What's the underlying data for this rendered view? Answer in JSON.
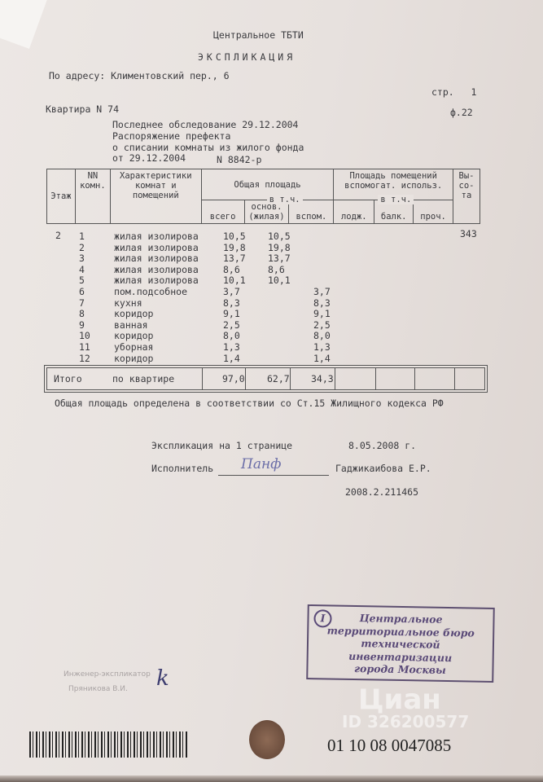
{
  "header": {
    "org": "Центральное ТБТИ",
    "title": "ЭКСПЛИКАЦИЯ",
    "address": "По адресу: Климентовский пер., 6",
    "page": "стр.   1",
    "form": "ф.22"
  },
  "apartment": {
    "number": "Квартира N 74",
    "survey": "Последнее обследование 29.12.2004",
    "order_line1": "Распоряжение префекта",
    "order_line2": "о списании комнаты из жилого фонда",
    "order_date": "от 29.12.2004",
    "order_number": "N 8842-р"
  },
  "table": {
    "headers": {
      "floor": "Этаж",
      "num": "NN комн.",
      "desc": "Характеристики комнат и помещений",
      "total_area": "Общая площадь",
      "incl": "в т.ч.",
      "all": "всего",
      "main": "основ. (жилая)",
      "aux": "вспом.",
      "aux_area": "Площадь помещений вспомогат. использ.",
      "incl2": "в т.ч.",
      "loggia": "лодж.",
      "balcony": "балк.",
      "other": "проч.",
      "height": "Вы- со- та"
    },
    "floor": "2",
    "height": "343",
    "rows": [
      {
        "n": "1",
        "desc": "жилая изолирова",
        "all": "10,5",
        "main": "10,5",
        "aux": ""
      },
      {
        "n": "2",
        "desc": "жилая изолирова",
        "all": "19,8",
        "main": "19,8",
        "aux": ""
      },
      {
        "n": "3",
        "desc": "жилая изолирова",
        "all": "13,7",
        "main": "13,7",
        "aux": ""
      },
      {
        "n": "4",
        "desc": "жилая изолирова",
        "all": "8,6",
        "main": "8,6",
        "aux": ""
      },
      {
        "n": "5",
        "desc": "жилая изолирова",
        "all": "10,1",
        "main": "10,1",
        "aux": ""
      },
      {
        "n": "6",
        "desc": "пом.подсобное",
        "all": "3,7",
        "main": "",
        "aux": "3,7"
      },
      {
        "n": "7",
        "desc": "кухня",
        "all": "8,3",
        "main": "",
        "aux": "8,3"
      },
      {
        "n": "8",
        "desc": "коридор",
        "all": "9,1",
        "main": "",
        "aux": "9,1"
      },
      {
        "n": "9",
        "desc": "ванная",
        "all": "2,5",
        "main": "",
        "aux": "2,5"
      },
      {
        "n": "10",
        "desc": "коридор",
        "all": "8,0",
        "main": "",
        "aux": "8,0"
      },
      {
        "n": "11",
        "desc": "уборная",
        "all": "1,3",
        "main": "",
        "aux": "1,3"
      },
      {
        "n": "12",
        "desc": "коридор",
        "all": "1,4",
        "main": "",
        "aux": "1,4"
      }
    ],
    "total": {
      "label": "Итого",
      "scope": "по квартире",
      "all": "97,0",
      "main": "62,7",
      "aux": "34,3"
    }
  },
  "note": "Общая площадь определена в соответствии со Ст.15 Жилищного кодекса РФ",
  "footer": {
    "pages": "Экспликация на 1 странице",
    "date": "8.05.2008 г.",
    "executor_label": "Исполнитель",
    "executor_signature": "Панф",
    "executor_name": "Гаджикаибова Е.Р.",
    "reg_number": "2008.2.211465"
  },
  "engineer": {
    "title": "Инженер-экспликатор",
    "name": "Пряникова В.И."
  },
  "stamp": {
    "mark": "I",
    "line1": "Центральное",
    "line2": "территориальное бюро",
    "line3": "технической инвентаризации",
    "line4": "города Москвы"
  },
  "serial": "01 10 08 0047085",
  "watermark": {
    "brand": "Циан",
    "id": "ID 326200577"
  }
}
